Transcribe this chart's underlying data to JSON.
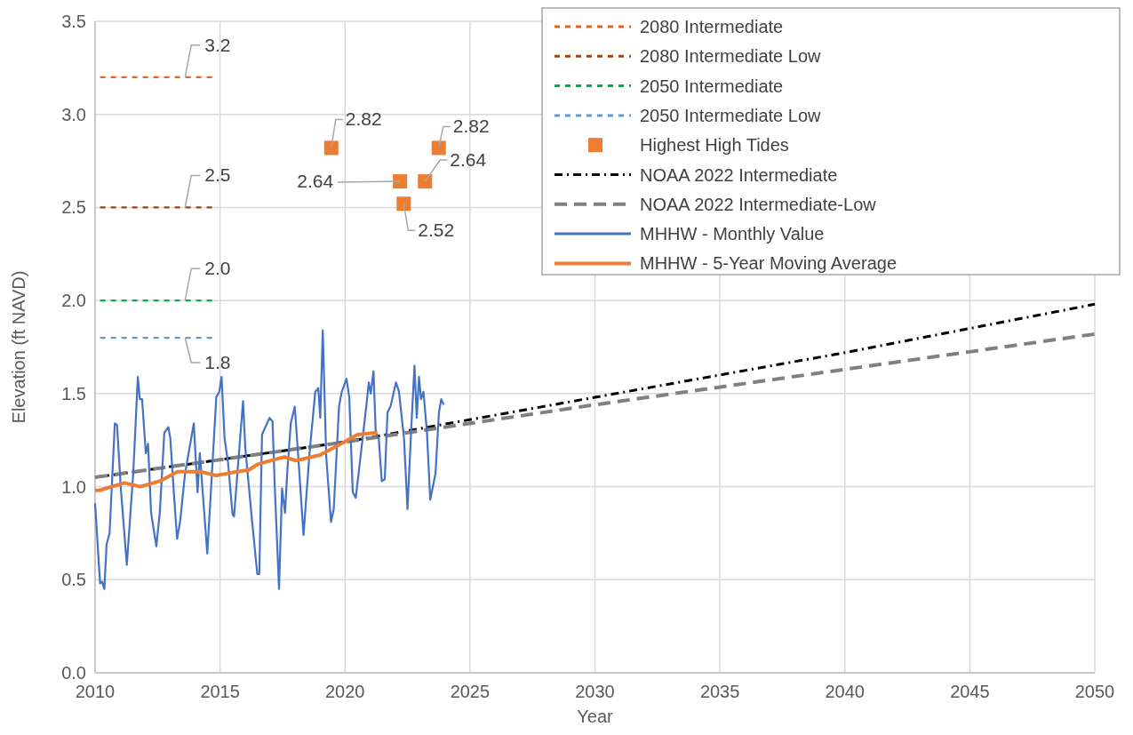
{
  "chart_data": {
    "type": "line",
    "xlabel": "Year",
    "ylabel": "Elevation (ft NAVD)",
    "xlim": [
      2010,
      2050
    ],
    "xticks": [
      2010,
      2015,
      2020,
      2025,
      2030,
      2035,
      2040,
      2045,
      2050
    ],
    "ylim": [
      0,
      3.5
    ],
    "yticks": [
      {
        "value": 0,
        "label": "0.0"
      },
      {
        "value": 0.5,
        "label": "0.5"
      },
      {
        "value": 1,
        "label": "1.0"
      },
      {
        "value": 1.5,
        "label": "1.5"
      },
      {
        "value": 2,
        "label": "2.0"
      },
      {
        "value": 2.5,
        "label": "2.5"
      },
      {
        "value": 3,
        "label": "3.0"
      },
      {
        "value": 3.5,
        "label": "3.5"
      }
    ],
    "grid": true,
    "legend": "top right",
    "series": [
      {
        "name": "2080 Intermediate",
        "type": "line",
        "line_style": "dashed",
        "color": "#e2641c",
        "x": [
          2010.2,
          2013.6,
          2014.7
        ],
        "values": [
          3.2,
          3.2,
          3.2
        ],
        "value_labels": [
          null,
          "3.2",
          null
        ]
      },
      {
        "name": "2080 Intermediate Low",
        "type": "line",
        "line_style": "dashed",
        "color": "#a0440c",
        "x": [
          2010.2,
          2013.6,
          2014.7
        ],
        "values": [
          2.5,
          2.5,
          2.5
        ],
        "value_labels": [
          null,
          "2.5",
          null
        ]
      },
      {
        "name": "2050 Intermediate",
        "type": "line",
        "line_style": "dashed",
        "color": "#00b050",
        "x": [
          2010.2,
          2013.6,
          2014.7
        ],
        "values": [
          2.0,
          2.0,
          2.0
        ],
        "value_labels": [
          null,
          "2.0",
          null
        ]
      },
      {
        "name": "2050 Intermediate Low",
        "type": "line",
        "line_style": "dashed",
        "color": "#5b9bd5",
        "x": [
          2010.2,
          2013.6,
          2014.7
        ],
        "values": [
          1.8,
          1.8,
          1.8
        ],
        "value_labels": [
          null,
          "1.8",
          null
        ]
      },
      {
        "name": "Highest High Tides",
        "type": "scatter",
        "marker": "square",
        "color": "#ed7d31",
        "x": [
          2019.45,
          2022.2,
          2022.35,
          2023.2,
          2023.75
        ],
        "values": [
          2.82,
          2.64,
          2.52,
          2.64,
          2.82
        ],
        "value_labels": [
          "2.82",
          "2.64",
          "2.52",
          "2.64",
          "2.82"
        ]
      },
      {
        "name": "NOAA 2022 Intermediate",
        "type": "line",
        "line_style": "dashdot",
        "color": "#000000",
        "x": [
          2010,
          2020,
          2030,
          2040,
          2050
        ],
        "values": [
          1.05,
          1.24,
          1.48,
          1.72,
          1.98
        ]
      },
      {
        "name": "NOAA 2022 Intermediate-Low",
        "type": "line",
        "line_style": "dashed",
        "color": "#808080",
        "x": [
          2010,
          2020,
          2030,
          2040,
          2050
        ],
        "values": [
          1.05,
          1.24,
          1.44,
          1.63,
          1.82
        ]
      },
      {
        "name": "MHHW - Monthly Value",
        "type": "line",
        "line_style": "solid",
        "color": "#4472c4",
        "x": [
          2010.0,
          2010.2,
          2010.28,
          2010.37,
          2010.46,
          2010.58,
          2010.79,
          2010.88,
          2011.03,
          2011.27,
          2011.53,
          2011.71,
          2011.79,
          2011.88,
          2012.03,
          2012.12,
          2012.24,
          2012.45,
          2012.59,
          2012.77,
          2012.93,
          2013.01,
          2013.15,
          2013.28,
          2013.4,
          2013.6,
          2013.95,
          2014.1,
          2014.19,
          2014.49,
          2014.85,
          2014.97,
          2015.06,
          2015.18,
          2015.32,
          2015.5,
          2015.56,
          2015.74,
          2015.92,
          2016.01,
          2016.25,
          2016.49,
          2016.57,
          2016.68,
          2016.98,
          2017.1,
          2017.19,
          2017.36,
          2017.48,
          2017.6,
          2017.69,
          2017.83,
          2017.99,
          2018.16,
          2018.34,
          2018.58,
          2018.81,
          2018.93,
          2019.01,
          2019.11,
          2019.25,
          2019.44,
          2019.55,
          2019.76,
          2019.87,
          2020.06,
          2020.17,
          2020.31,
          2020.43,
          2020.62,
          2020.85,
          2020.95,
          2021.03,
          2021.14,
          2021.23,
          2021.35,
          2021.47,
          2021.59,
          2021.7,
          2021.82,
          2022.04,
          2022.16,
          2022.36,
          2022.5,
          2022.66,
          2022.78,
          2022.87,
          2022.96,
          2023.04,
          2023.14,
          2023.28,
          2023.41,
          2023.62,
          2023.76,
          2023.85,
          2023.95
        ],
        "values": [
          0.91,
          0.48,
          0.49,
          0.45,
          0.69,
          0.75,
          1.34,
          1.33,
          0.99,
          0.58,
          1.08,
          1.59,
          1.47,
          1.47,
          1.18,
          1.23,
          0.86,
          0.68,
          0.86,
          1.29,
          1.32,
          1.26,
          0.97,
          0.72,
          0.81,
          1.07,
          1.34,
          0.97,
          1.18,
          0.64,
          1.48,
          1.51,
          1.59,
          1.26,
          1.13,
          0.85,
          0.84,
          1.15,
          1.46,
          1.21,
          0.86,
          0.53,
          0.53,
          1.28,
          1.37,
          1.35,
          1.0,
          0.45,
          0.99,
          0.86,
          1.08,
          1.34,
          1.43,
          1.1,
          0.74,
          1.18,
          1.51,
          1.53,
          1.37,
          1.84,
          1.16,
          0.81,
          0.88,
          1.43,
          1.51,
          1.58,
          1.48,
          0.97,
          0.94,
          1.16,
          1.43,
          1.56,
          1.5,
          1.62,
          1.29,
          1.26,
          1.03,
          1.04,
          1.4,
          1.43,
          1.56,
          1.51,
          1.26,
          0.88,
          1.34,
          1.65,
          1.37,
          1.59,
          1.47,
          1.51,
          1.29,
          0.93,
          1.07,
          1.4,
          1.47,
          1.44
        ]
      },
      {
        "name": "MHHW - 5-Year Moving Average",
        "type": "line",
        "line_style": "solid",
        "color": "#ed7d31",
        "x": [
          2010.0,
          2010.17,
          2011.17,
          2011.8,
          2012.6,
          2013.3,
          2014.25,
          2014.84,
          2015.68,
          2016.15,
          2016.5,
          2017.57,
          2018.04,
          2019.0,
          2019.7,
          2020.5,
          2021.3
        ],
        "values": [
          0.98,
          0.98,
          1.02,
          1.0,
          1.03,
          1.08,
          1.08,
          1.06,
          1.08,
          1.09,
          1.12,
          1.16,
          1.14,
          1.17,
          1.22,
          1.28,
          1.29
        ]
      }
    ]
  }
}
